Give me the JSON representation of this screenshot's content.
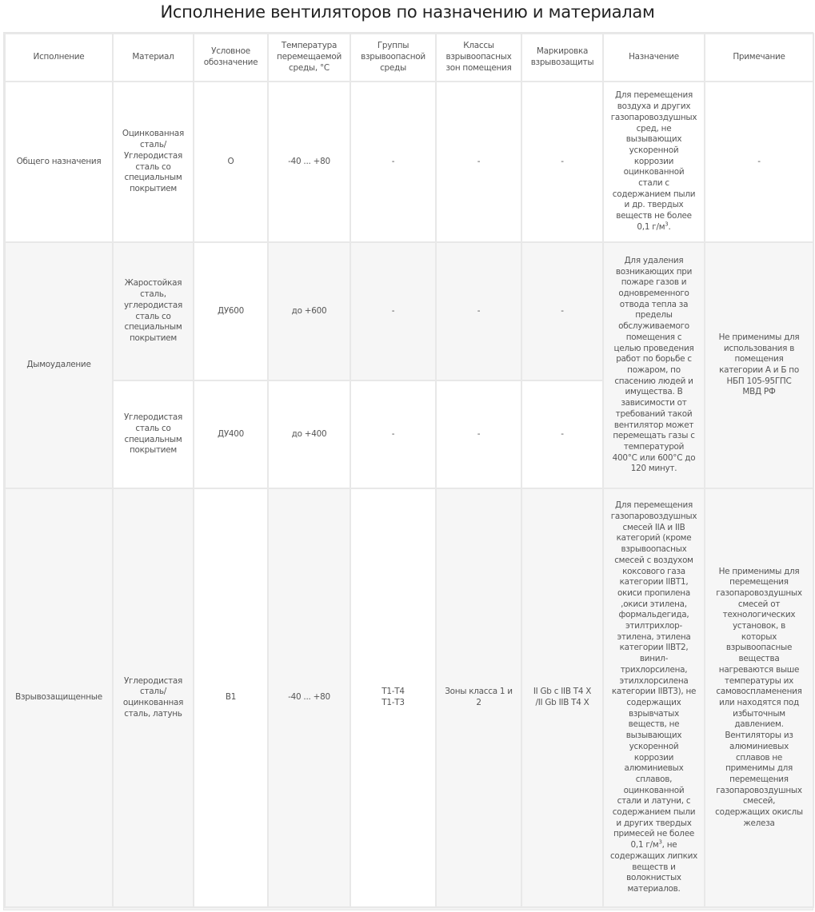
{
  "title": "Исполнение вентиляторов по назначению и материалам",
  "headers": [
    "Исполнение",
    "Материал",
    "Условное\nобозначение",
    "Температура\nперемещаемой\nсреды, °С",
    "Группы\nвзрывоопасной\nсреды",
    "Классы\nвзрывоопасных\nзон помещения",
    "Маркировка\nвзрывозащиты",
    "Назначение",
    "Примечание"
  ],
  "rows": {
    "general": {
      "execution": "Общего назначения",
      "material": "Оцинкованная\nсталь/\nУглеродистая\nсталь со\nспециальным\nпокрытием",
      "designation": "О",
      "temperature": "-40 ... +80",
      "groups": "-",
      "zones": "-",
      "marking": "-",
      "purpose": "Для перемещения\nвоздуха и других\nгазопаровоздушных\nсред, не\nвызывающих\nускоренной\nкоррозии\nоцинкованной\nстали с\nсодержанием пыли\nи др. твердых\nвеществ не более\n0,1 г/м",
      "purpose_sup": "3",
      "purpose_end": ".",
      "note": "-"
    },
    "smoke": {
      "execution": "Дымоудаление",
      "purpose": "Для удаления\nвозникающих при\nпожаре газов и\nодновременного\nотвода тепла за\nпределы\nобслуживаемого\nпомещения с\nцелью проведения\nработ по борьбе с\nпожаром, по\nспасению людей и\nимущества. В\nзависимости от\nтребований такой\nвентилятор может\nперемещать газы с\nтемпературой\n400°С или 600°С до\n120 минут.",
      "note": "Не применимы для\nиспользования в\nпомещения\nкатегории А и Б по\nНБП 105-95ГПС\nМВД РФ",
      "sub": [
        {
          "material": "Жаростойкая\nсталь,\nуглеродистая\nсталь  со\nспециальным\nпокрытием",
          "designation": "ДУ600",
          "temperature": "до +600",
          "groups": "-",
          "zones": "-",
          "marking": "-"
        },
        {
          "material": "Углеродистая\nсталь со\nспециальным\nпокрытием",
          "designation": "ДУ400",
          "temperature": "до +400",
          "groups": "-",
          "zones": "-",
          "marking": "-"
        }
      ]
    },
    "explosion": {
      "execution": "Взрывозащищенные",
      "material": "Углеродистая\nсталь/\nоцинкованная\nсталь, латунь",
      "designation": "В1",
      "temperature": "-40 ... +80",
      "groups": "Т1-Т4\nТ1-Т3",
      "zones": "Зоны класса 1 и\n2",
      "marking": "II Gb c IIB T4 X\n/II Gb  IIB T4 X",
      "purpose": "Для перемещения\nгазопаровоздушных\nсмесей IIА и IIВ\nкатегорий (кроме\nвзрывоопасных\nсмесей с воздухом\nкоксового газа\nкатегории  IIВТ1,\nокиси пропилена\n,окиси этилена,\nформальдегида,\nэтилтрихлор-\nэтилена, этилена\nкатегории IIВТ2,\nвинил-\nтрихлорсилена,\nэтилхлорсилена\nкатегории IIВТ3), не\nсодержащих\nвзрывчатых\nвеществ, не\nвызывающих\nускоренной\nкоррозии\nалюминиевых\nсплавов,\nоцинкованной\nстали и латуни, с\nсодержанием пыли\nи других твердых\nпримесей не более\n0,1 г/м",
      "purpose_sup": "3",
      "purpose_end": ", не\nсодержащих липких\nвеществ и\nволокнистых\nматериалов.",
      "note": "Не применимы для\nперемещения\nгазопаровоздушных\nсмесей от\nтехнологических\nустановок, в\nкоторых\nвзрывоопасные\nвещества\nнагреваются выше\nтемпературы их\nсамовоспламенения\nили находятся под\nизбыточным\nдавлением.\nВентиляторы из\nалюминиевых\nсплавов не\nприменимы для\nперемещения\nгазопаровоздушных\nсмесей,\nсодержащих окислы\nжелеза"
    }
  }
}
